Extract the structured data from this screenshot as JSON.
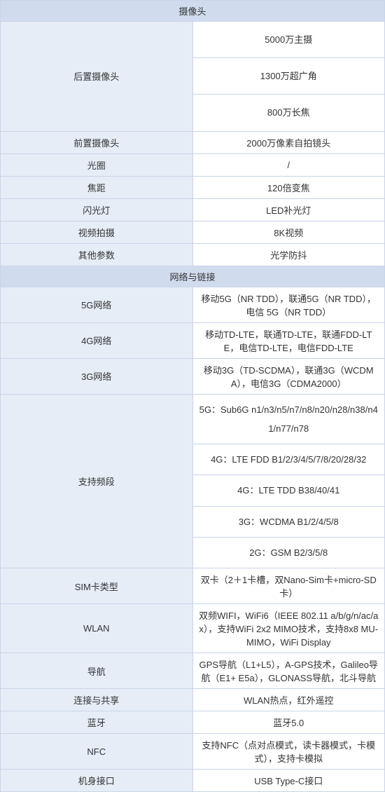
{
  "colors": {
    "header_bg": "#d0dcee",
    "label_bg": "#e6edf7",
    "border": "#c8d4e8",
    "text": "#333333"
  },
  "camera": {
    "section_title": "摄像头",
    "rear": {
      "label": "后置摄像头",
      "v1": "5000万主摄",
      "v2": "1300万超广角",
      "v3": "800万长焦"
    },
    "front": {
      "label": "前置摄像头",
      "value": "2000万像素自拍镜头"
    },
    "aperture": {
      "label": "光圈",
      "value": "/"
    },
    "focal": {
      "label": "焦距",
      "value": "120倍变焦"
    },
    "flash": {
      "label": "闪光灯",
      "value": "LED补光灯"
    },
    "video": {
      "label": "视频拍摄",
      "value": "8K视频"
    },
    "other": {
      "label": "其他参数",
      "value": "光学防抖"
    }
  },
  "network": {
    "section_title": "网络与链接",
    "g5": {
      "label": "5G网络",
      "value": "移动5G（NR TDD），联通5G（NR TDD），电信 5G（NR TDD）"
    },
    "g4": {
      "label": "4G网络",
      "value": "移动TD-LTE，联通TD-LTE，联通FDD-LTE，电信TD-LTE，电信FDD-LTE"
    },
    "g3": {
      "label": "3G网络",
      "value": "移动3G（TD-SCDMA），联通3G（WCDMA），电信3G（CDMA2000）"
    },
    "bands": {
      "label": "支持频段",
      "v1": "5G：Sub6G n1/n3/n5/n7/n8/n20/n28/n38/n41/n77/n78",
      "v2": "4G：LTE FDD B1/2/3/4/5/7/8/20/28/32",
      "v3": "4G：LTE TDD B38/40/41",
      "v4": "3G：WCDMA B1/2/4/5/8",
      "v5": "2G：GSM B2/3/5/8"
    },
    "sim": {
      "label": "SIM卡类型",
      "value": "双卡（2＋1卡槽，双Nano-Sim卡+micro-SD卡）"
    },
    "wlan": {
      "label": "WLAN",
      "value": "双频WIFI，WiFi6（IEEE 802.11 a/b/g/n/ac/ax），支持WiFi 2x2 MIMO技术，支持8x8 MU-MIMO，WiFi Display"
    },
    "nav": {
      "label": "导航",
      "value": "GPS导航（L1+L5），A-GPS技术，Galileo导航（E1+ E5a），GLONASS导航，北斗导航"
    },
    "share": {
      "label": "连接与共享",
      "value": "WLAN热点，红外遥控"
    },
    "bt": {
      "label": "蓝牙",
      "value": "蓝牙5.0"
    },
    "nfc": {
      "label": "NFC",
      "value": "支持NFC（点对点模式，读卡器模式，卡模式），支持卡模拟"
    },
    "port": {
      "label": "机身接口",
      "value": "USB Type-C接口"
    }
  }
}
